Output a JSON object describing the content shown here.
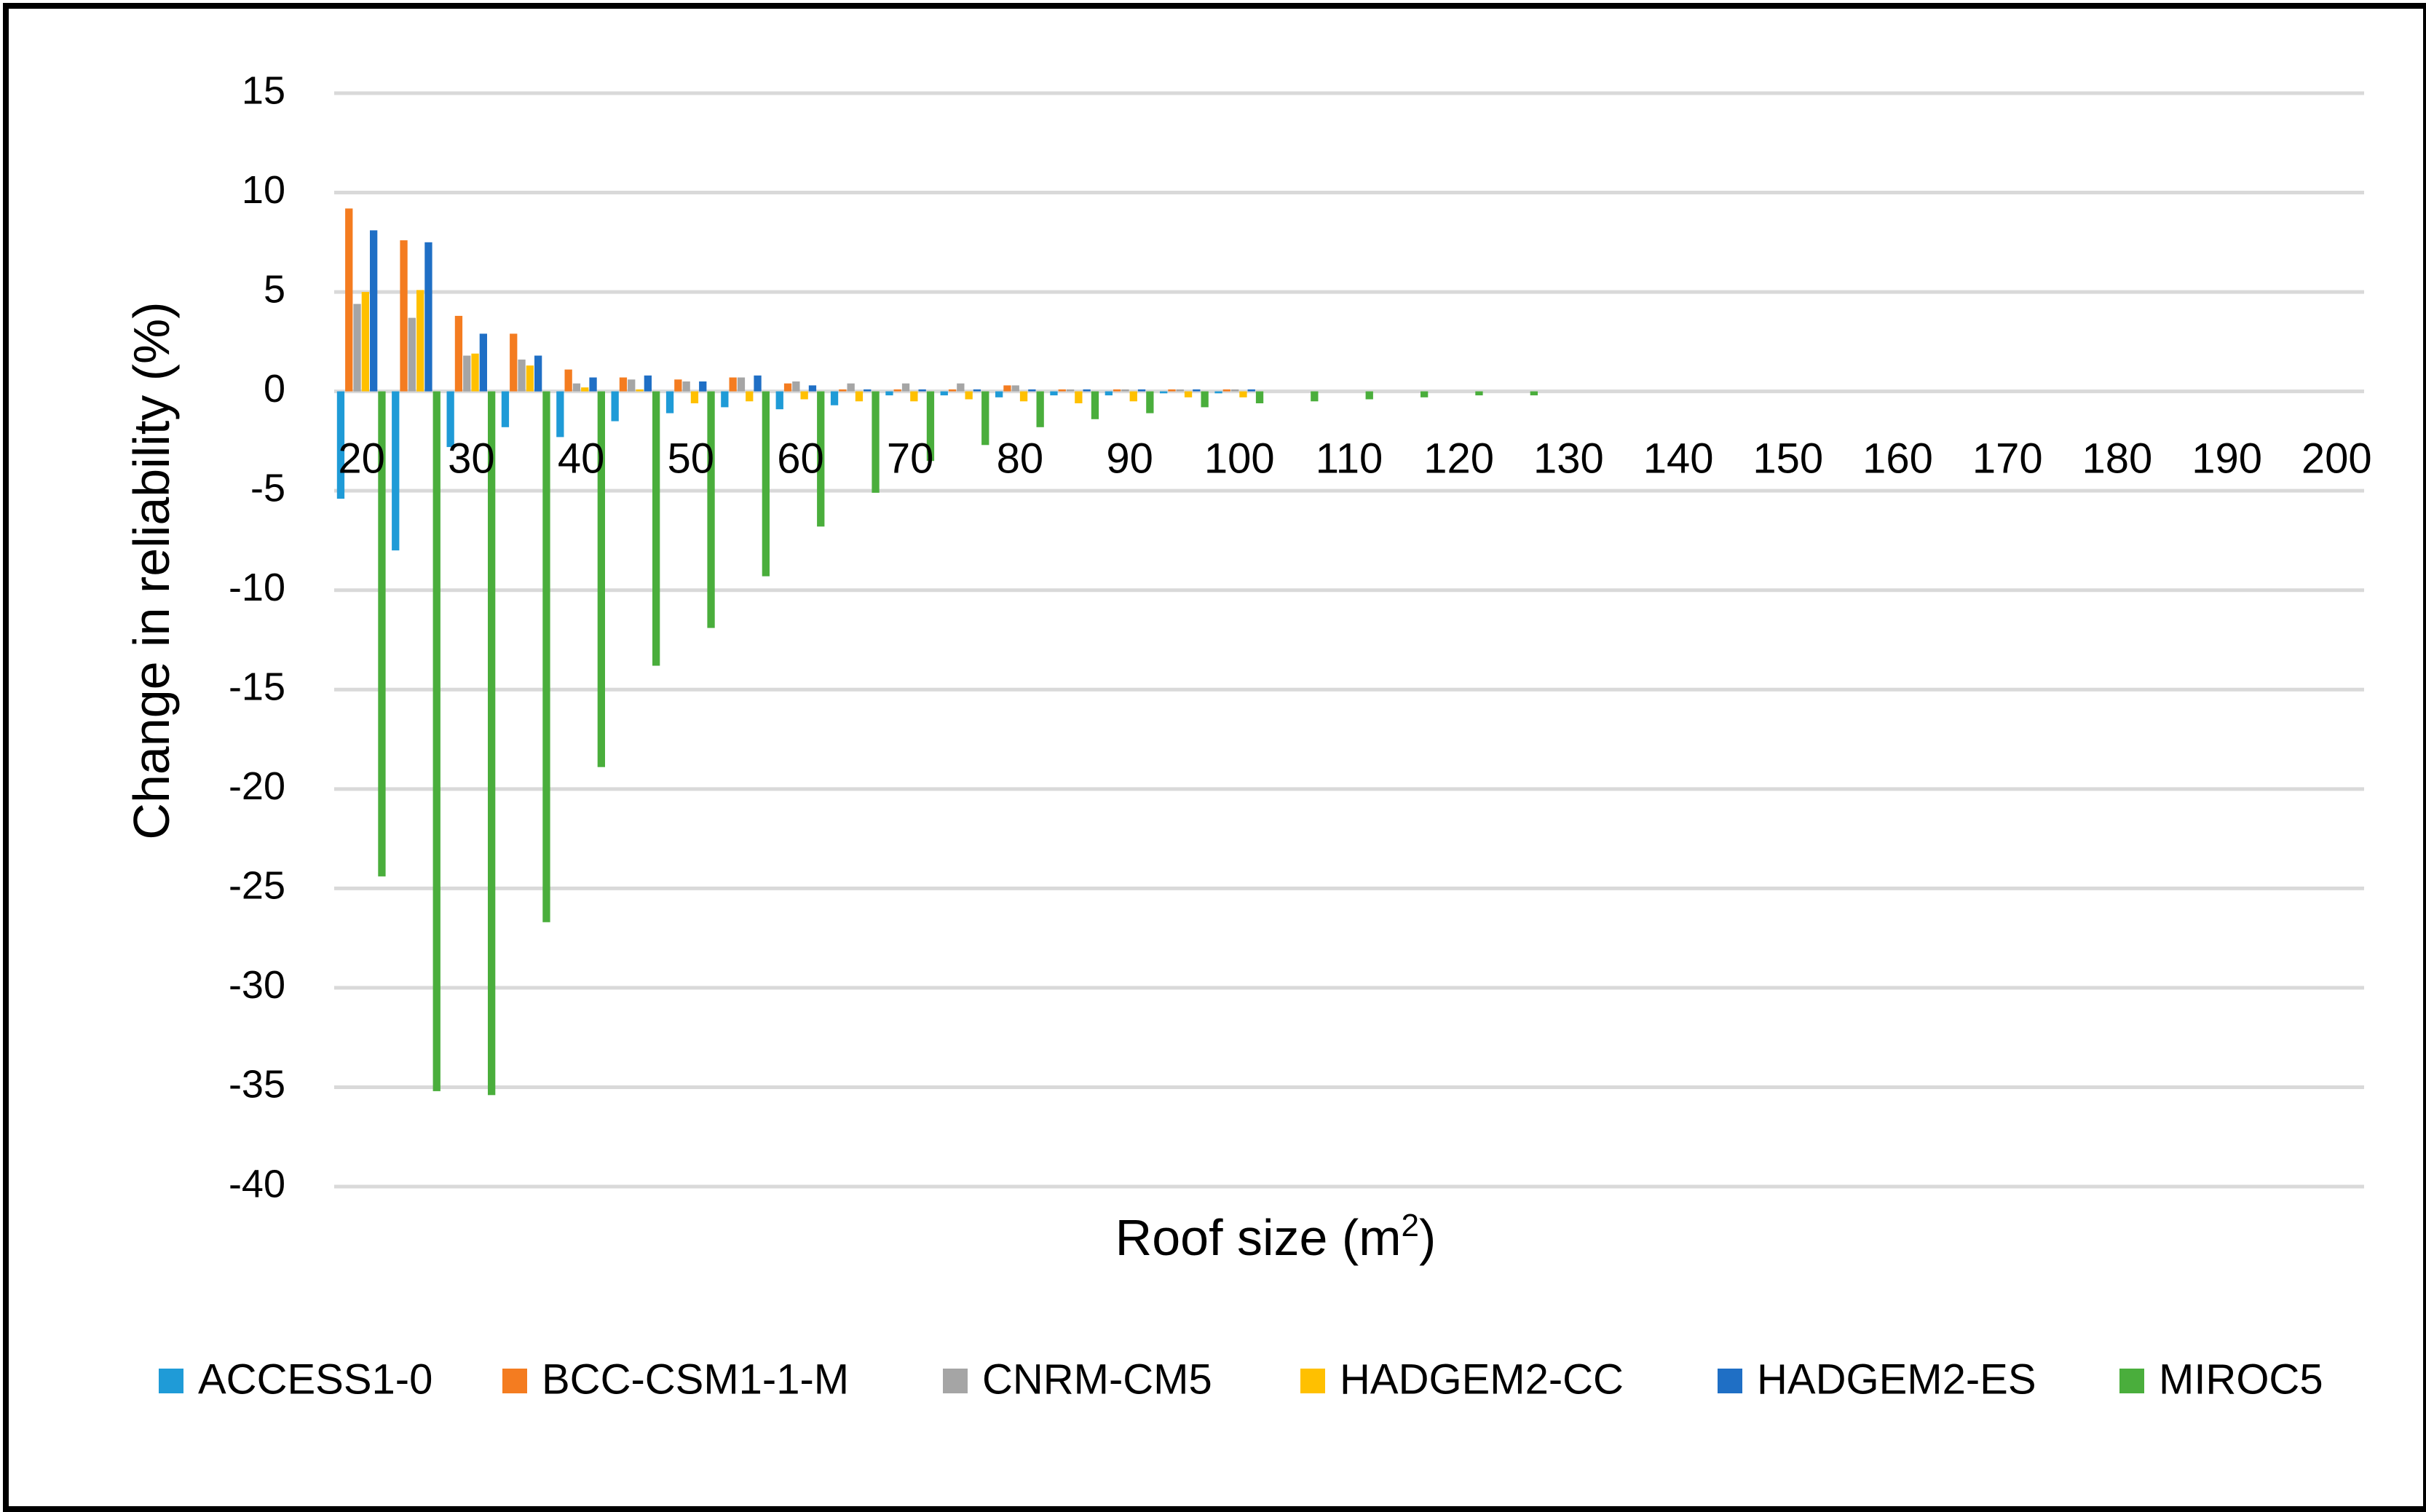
{
  "chart_data": {
    "type": "bar",
    "xlabel": "Roof size (m",
    "xlabel_sup": "2",
    "xlabel_end": ")",
    "ylabel": "Change in reliability (%)",
    "ylim": [
      -40,
      15
    ],
    "yticks": [
      15,
      10,
      5,
      0,
      -5,
      -10,
      -15,
      -20,
      -25,
      -30,
      -35,
      -40
    ],
    "xtick_labels": [
      "20",
      "30",
      "40",
      "50",
      "60",
      "70",
      "80",
      "90",
      "100",
      "110",
      "120",
      "130",
      "140",
      "150",
      "160",
      "170",
      "180",
      "190",
      "200"
    ],
    "grid": true,
    "legend_position": "bottom",
    "categories": [
      20,
      25,
      30,
      35,
      40,
      45,
      50,
      55,
      60,
      65,
      70,
      75,
      80,
      85,
      90,
      95,
      100,
      105,
      110,
      115,
      120,
      125,
      130,
      135,
      140,
      145,
      150,
      155,
      160,
      165,
      170,
      175,
      180,
      185,
      190,
      195,
      200
    ],
    "series": [
      {
        "name": "ACCESS1-0",
        "color": "#1f9bd7",
        "values": [
          -5.4,
          -8.0,
          -2.8,
          -1.8,
          -2.3,
          -1.5,
          -1.1,
          -0.8,
          -0.9,
          -0.7,
          -0.2,
          -0.2,
          -0.3,
          -0.2,
          -0.2,
          -0.1,
          -0.1,
          0,
          0,
          0,
          0,
          0,
          0,
          0,
          0,
          0,
          0,
          0,
          0,
          0,
          0,
          0,
          0,
          0,
          0,
          0,
          0
        ]
      },
      {
        "name": "BCC-CSM1-1-M",
        "color": "#f47c20",
        "values": [
          9.2,
          7.6,
          3.8,
          2.9,
          1.1,
          0.7,
          0.6,
          0.7,
          0.4,
          0.1,
          0.1,
          0.1,
          0.3,
          0.1,
          0.1,
          0.1,
          0.1,
          0,
          0,
          0,
          0,
          0,
          0,
          0,
          0,
          0,
          0,
          0,
          0,
          0,
          0,
          0,
          0,
          0,
          0,
          0,
          0
        ]
      },
      {
        "name": "CNRM-CM5",
        "color": "#a5a5a5",
        "values": [
          4.4,
          3.7,
          1.8,
          1.6,
          0.4,
          0.6,
          0.5,
          0.7,
          0.5,
          0.4,
          0.4,
          0.4,
          0.3,
          0.1,
          0.1,
          0.1,
          0.1,
          0,
          0,
          0,
          0,
          0,
          0,
          0,
          0,
          0,
          0,
          0,
          0,
          0,
          0,
          0,
          0,
          0,
          0,
          0,
          0
        ]
      },
      {
        "name": "HADGEM2-CC",
        "color": "#ffc000",
        "values": [
          5.0,
          5.1,
          1.9,
          1.3,
          0.2,
          0.1,
          -0.6,
          -0.5,
          -0.4,
          -0.5,
          -0.5,
          -0.4,
          -0.5,
          -0.6,
          -0.5,
          -0.3,
          -0.3,
          0,
          0,
          0,
          0,
          0,
          0,
          0,
          0,
          0,
          0,
          0,
          0,
          0,
          0,
          0,
          0,
          0,
          0,
          0,
          0
        ]
      },
      {
        "name": "HADGEM2-ES",
        "color": "#1f6fc5",
        "values": [
          8.1,
          7.5,
          2.9,
          1.8,
          0.7,
          0.8,
          0.5,
          0.8,
          0.3,
          0.1,
          0.1,
          0.1,
          0.1,
          0.1,
          0.1,
          0.1,
          0.1,
          0,
          0,
          0,
          0,
          0,
          0,
          0,
          0,
          0,
          0,
          0,
          0,
          0,
          0,
          0,
          0,
          0,
          0,
          0,
          0
        ]
      },
      {
        "name": "MIROC5",
        "color": "#4aae3c",
        "values": [
          -24.4,
          -35.2,
          -35.4,
          -26.7,
          -18.9,
          -13.8,
          -11.9,
          -9.3,
          -6.8,
          -5.1,
          -3.5,
          -2.7,
          -1.8,
          -1.4,
          -1.1,
          -0.8,
          -0.6,
          -0.5,
          -0.4,
          -0.3,
          -0.2,
          -0.2,
          0,
          0,
          0,
          0,
          0,
          0,
          0,
          0,
          0,
          0,
          0,
          0,
          0,
          0,
          0
        ]
      }
    ]
  }
}
